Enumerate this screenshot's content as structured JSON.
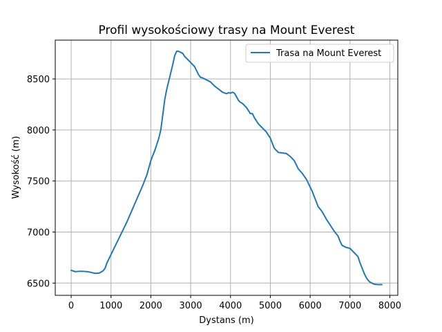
{
  "chart_data": {
    "type": "line",
    "title": "Profil wysokościowy trasy na Mount Everest",
    "xlabel": "Dystans (m)",
    "ylabel": "Wysokość (m)",
    "xlim": [
      -400,
      8200
    ],
    "ylim": [
      6380,
      8880
    ],
    "xticks": [
      0,
      1000,
      2000,
      3000,
      4000,
      5000,
      6000,
      7000,
      8000
    ],
    "yticks": [
      6500,
      7000,
      7500,
      8000,
      8500
    ],
    "grid": true,
    "legend_position": "top-right",
    "line_color": "#1f77b4",
    "series": [
      {
        "name": "Trasa na Mount Everest",
        "x": [
          0,
          100,
          200,
          300,
          400,
          500,
          600,
          700,
          800,
          850,
          900,
          1000,
          1100,
          1200,
          1300,
          1400,
          1500,
          1600,
          1700,
          1800,
          1900,
          2000,
          2100,
          2200,
          2250,
          2300,
          2350,
          2400,
          2450,
          2500,
          2550,
          2600,
          2650,
          2700,
          2800,
          2850,
          2900,
          3000,
          3100,
          3150,
          3200,
          3250,
          3300,
          3400,
          3500,
          3600,
          3700,
          3800,
          3900,
          3950,
          4000,
          4050,
          4100,
          4200,
          4250,
          4300,
          4400,
          4500,
          4550,
          4600,
          4700,
          4800,
          4900,
          5000,
          5100,
          5150,
          5200,
          5300,
          5400,
          5500,
          5600,
          5700,
          5800,
          5900,
          6000,
          6050,
          6100,
          6150,
          6200,
          6300,
          6400,
          6500,
          6600,
          6700,
          6750,
          6800,
          6900,
          7000,
          7050,
          7100,
          7200,
          7250,
          7300,
          7350,
          7400,
          7450,
          7500,
          7600,
          7700,
          7800
        ],
        "y": [
          6625,
          6612,
          6615,
          6615,
          6612,
          6605,
          6595,
          6598,
          6620,
          6645,
          6700,
          6780,
          6860,
          6940,
          7020,
          7100,
          7190,
          7280,
          7370,
          7460,
          7560,
          7700,
          7800,
          7920,
          8000,
          8150,
          8300,
          8400,
          8480,
          8560,
          8640,
          8730,
          8772,
          8770,
          8750,
          8720,
          8700,
          8660,
          8620,
          8580,
          8540,
          8515,
          8510,
          8490,
          8470,
          8430,
          8400,
          8370,
          8355,
          8365,
          8360,
          8370,
          8360,
          8290,
          8270,
          8260,
          8220,
          8160,
          8160,
          8120,
          8060,
          8020,
          7980,
          7920,
          7820,
          7800,
          7780,
          7775,
          7770,
          7740,
          7700,
          7620,
          7575,
          7520,
          7440,
          7400,
          7350,
          7300,
          7250,
          7200,
          7130,
          7070,
          7010,
          6960,
          6910,
          6870,
          6850,
          6840,
          6820,
          6800,
          6760,
          6700,
          6650,
          6600,
          6560,
          6530,
          6510,
          6490,
          6485,
          6485
        ]
      }
    ]
  }
}
